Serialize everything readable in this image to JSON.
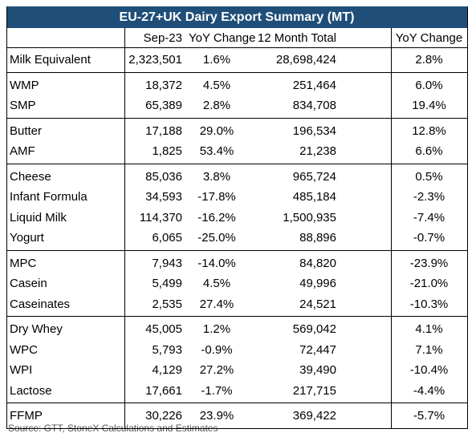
{
  "title": "EU-27+UK Dairy Export Summary (MT)",
  "headers": [
    "",
    "Sep-23",
    "YoY Change",
    "12 Month Total",
    "YoY Change"
  ],
  "groups": [
    [
      [
        "Milk Equivalent",
        "2,323,501",
        "1.6%",
        "28,698,424",
        "2.8%"
      ]
    ],
    [
      [
        "WMP",
        "18,372",
        "4.5%",
        "251,464",
        "6.0%"
      ],
      [
        "SMP",
        "65,389",
        "2.8%",
        "834,708",
        "19.4%"
      ]
    ],
    [
      [
        "Butter",
        "17,188",
        "29.0%",
        "196,534",
        "12.8%"
      ],
      [
        "AMF",
        "1,825",
        "53.4%",
        "21,238",
        "6.6%"
      ]
    ],
    [
      [
        "Cheese",
        "85,036",
        "3.8%",
        "965,724",
        "0.5%"
      ],
      [
        "Infant Formula",
        "34,593",
        "-17.8%",
        "485,184",
        "-2.3%"
      ],
      [
        "Liquid Milk",
        "114,370",
        "-16.2%",
        "1,500,935",
        "-7.4%"
      ],
      [
        "Yogurt",
        "6,065",
        "-25.0%",
        "88,896",
        "-0.7%"
      ]
    ],
    [
      [
        "MPC",
        "7,943",
        "-14.0%",
        "84,820",
        "-23.9%"
      ],
      [
        "Casein",
        "5,499",
        "4.5%",
        "49,996",
        "-21.0%"
      ],
      [
        "Caseinates",
        "2,535",
        "27.4%",
        "24,521",
        "-10.3%"
      ]
    ],
    [
      [
        "Dry Whey",
        "45,005",
        "1.2%",
        "569,042",
        "4.1%"
      ],
      [
        "WPC",
        "5,793",
        "-0.9%",
        "72,447",
        "7.1%"
      ],
      [
        "WPI",
        "4,129",
        "27.2%",
        "39,490",
        "-10.4%"
      ],
      [
        "Lactose",
        "17,661",
        "-1.7%",
        "217,715",
        "-4.4%"
      ]
    ],
    [
      [
        "FFMP",
        "30,226",
        "23.9%",
        "369,422",
        "-5.7%"
      ]
    ]
  ],
  "source": "Source: GTT, StoneX Calculations and Estimates"
}
